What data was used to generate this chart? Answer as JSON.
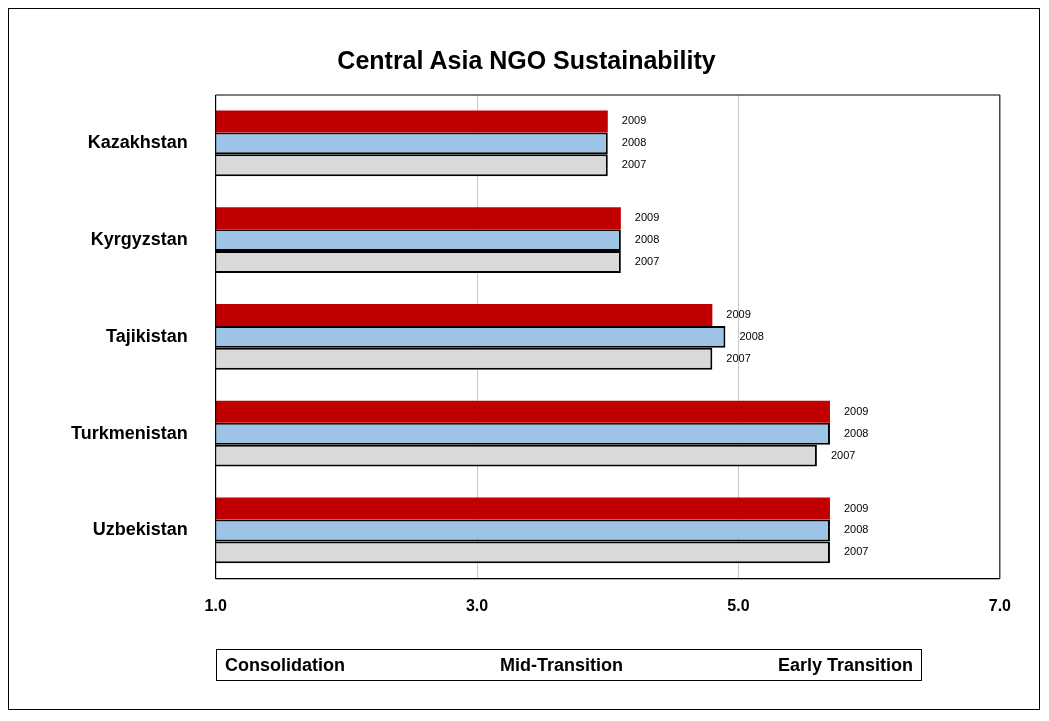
{
  "chart_data": {
    "type": "bar",
    "orientation": "horizontal",
    "title": "Central Asia NGO Sustainability",
    "categories": [
      "Kazakhstan",
      "Kyrgyzstan",
      "Tajikistan",
      "Turkmenistan",
      "Uzbekistan"
    ],
    "series": [
      {
        "name": "2009",
        "color": "#c00000",
        "values": [
          4.0,
          4.1,
          4.8,
          5.7,
          5.7
        ]
      },
      {
        "name": "2008",
        "color": "#9dc3e6",
        "values": [
          4.0,
          4.1,
          4.9,
          5.7,
          5.7
        ]
      },
      {
        "name": "2007",
        "color": "#d9d9d9",
        "values": [
          4.0,
          4.1,
          4.8,
          5.6,
          5.7
        ]
      }
    ],
    "xlim": [
      1,
      7
    ],
    "xticks": [
      {
        "value": 1,
        "label": "1.0"
      },
      {
        "value": 3,
        "label": "3.0"
      },
      {
        "value": 5,
        "label": "5.0"
      },
      {
        "value": 7,
        "label": "7.0"
      }
    ],
    "grid": "x",
    "legend": false,
    "annotations": [
      "Consolidation",
      "Mid-Transition",
      "Early Transition"
    ]
  }
}
